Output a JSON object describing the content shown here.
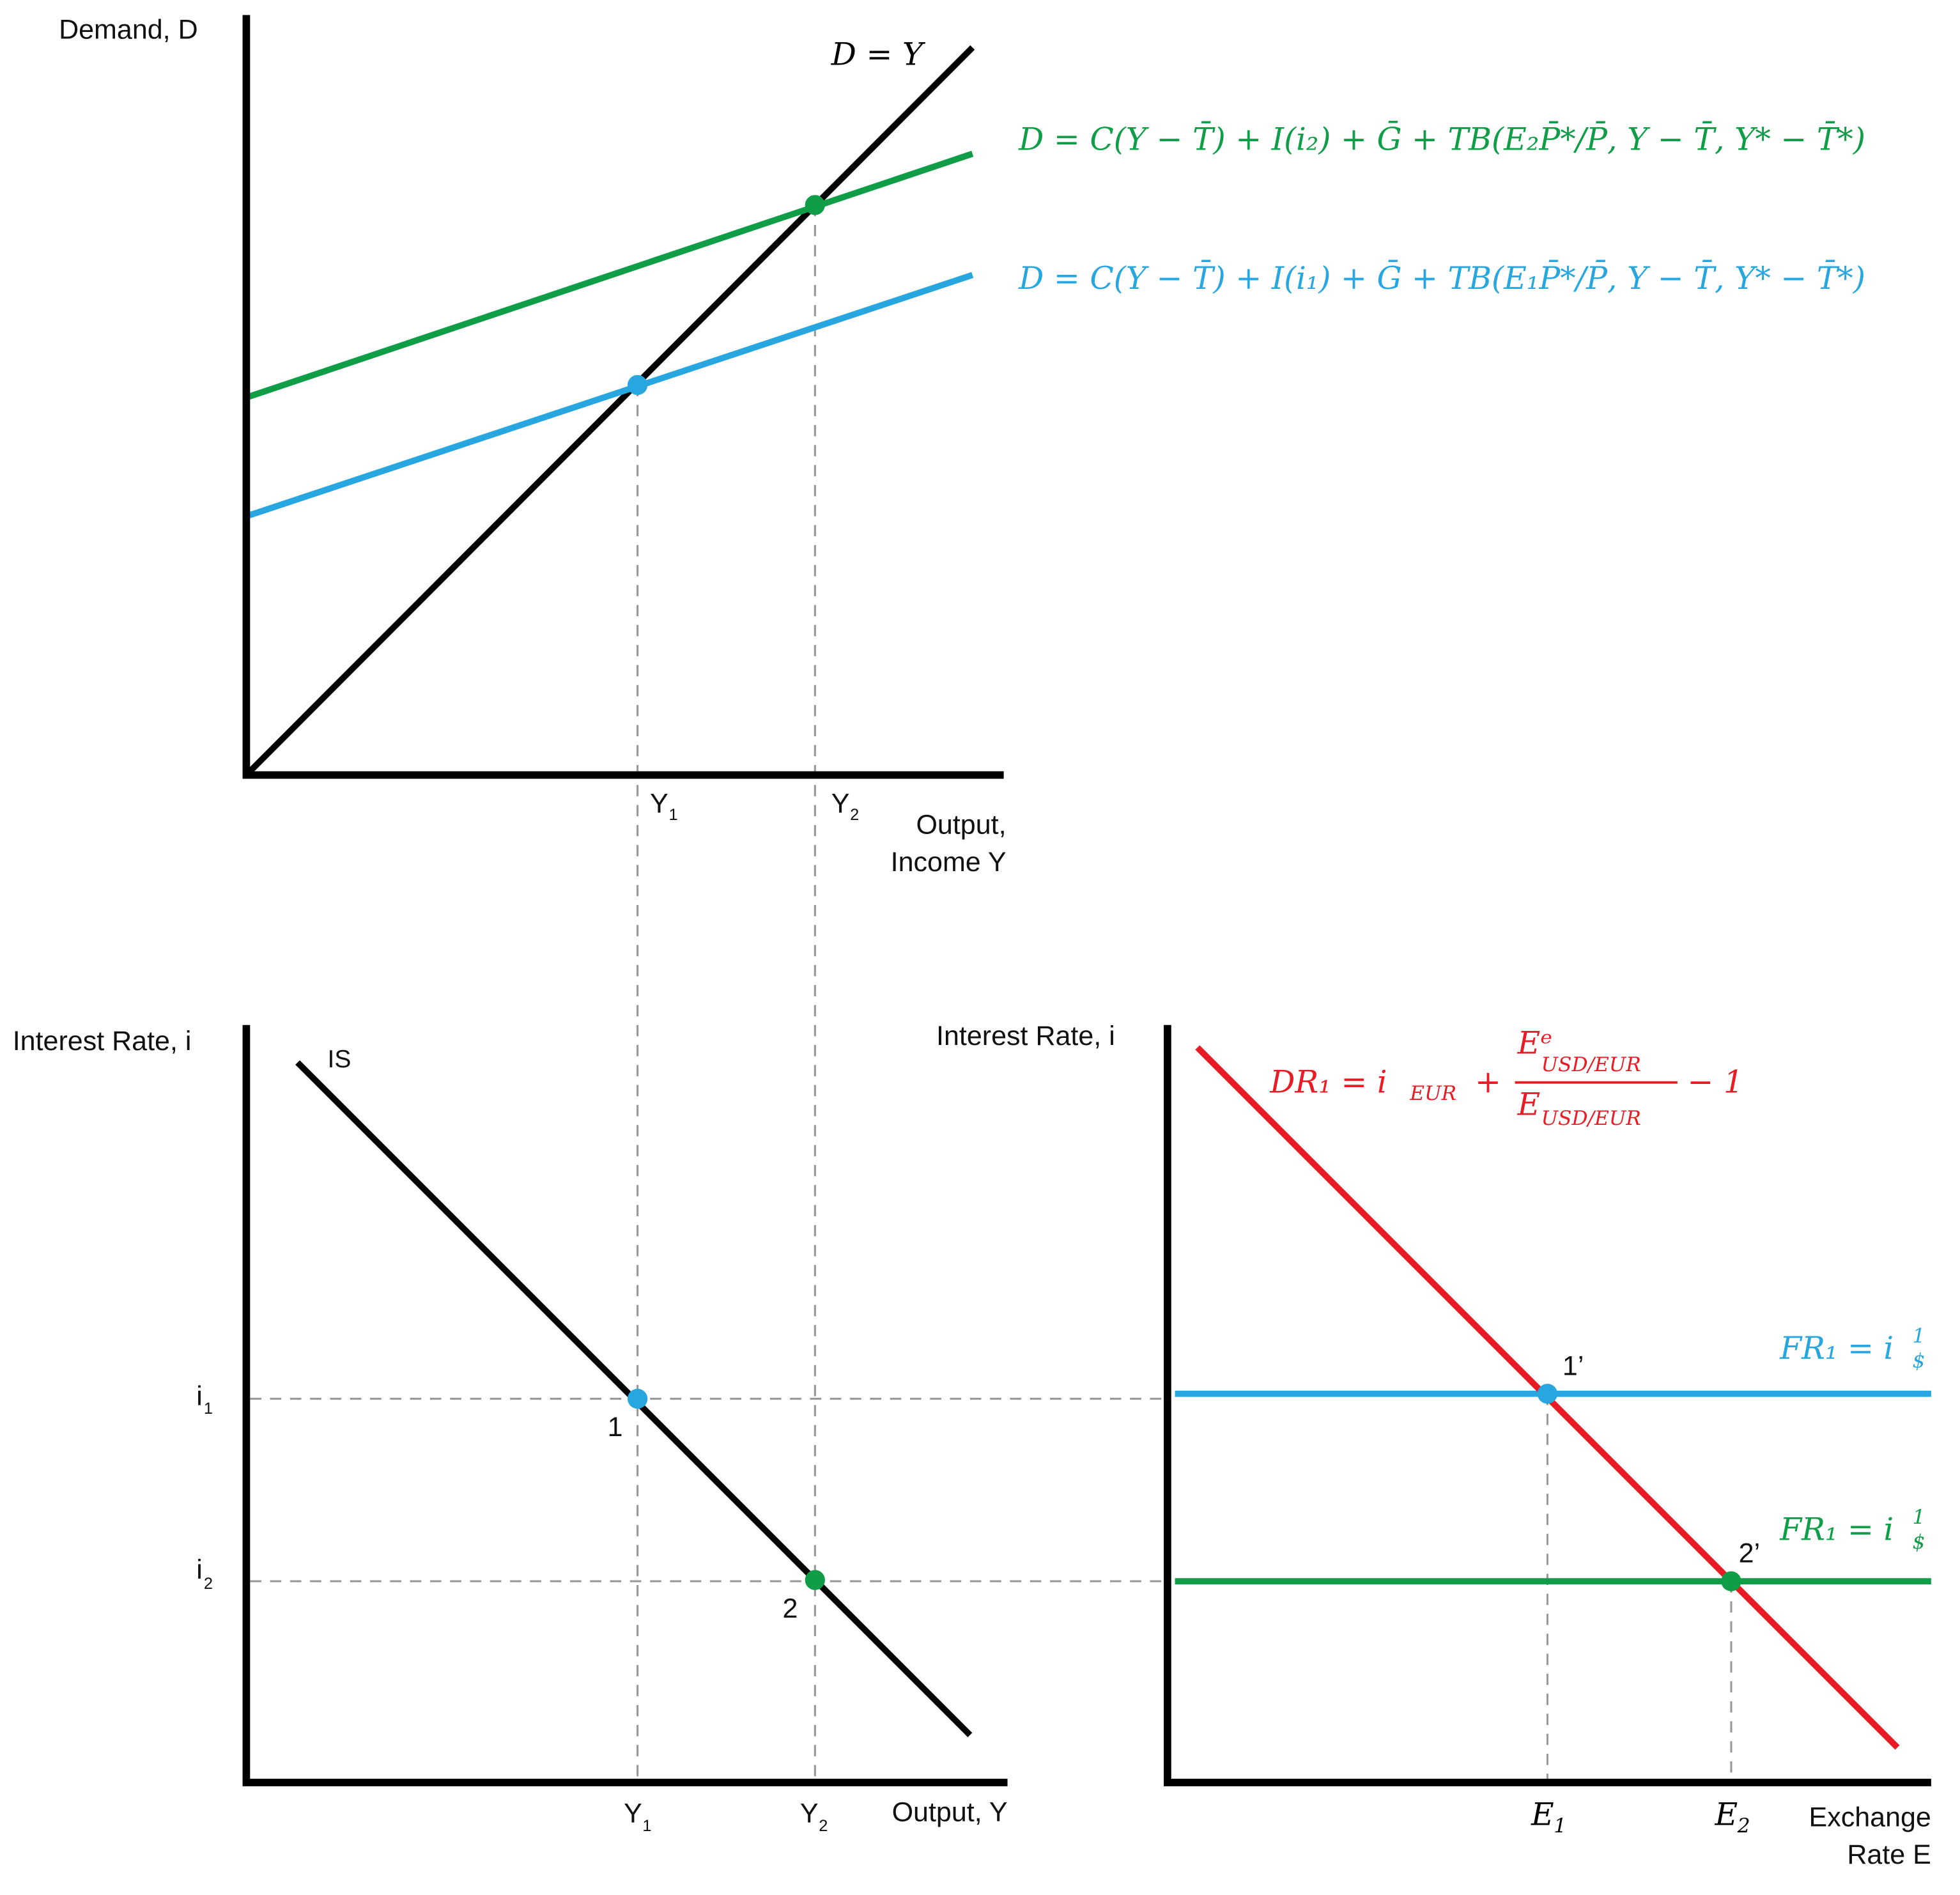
{
  "colors": {
    "green": "#0f9d47",
    "blue": "#27a6e0",
    "red": "#e81c24",
    "black": "#000000"
  },
  "top": {
    "y_label": "Demand, D",
    "x_label_line1": "Output,",
    "x_label_line2": "Income Y",
    "line_45": "D = Y",
    "green_eq": "D = C(Y − T̄) + I(i₂) + Ḡ + TB(E₂P̄*/P̄, Y − T̄, Y* − T̄*)",
    "blue_eq": "D = C(Y − T̄) + I(i₁) + Ḡ + TB(E₁P̄*/P̄, Y − T̄, Y* − T̄*)",
    "y1": "Y",
    "y1_sub": "1",
    "y2": "Y",
    "y2_sub": "2"
  },
  "bottom_left": {
    "y_label": "Interest Rate, i",
    "x_label": "Output, Y",
    "curve": "IS",
    "i1": "i",
    "i1_sub": "1",
    "i2": "i",
    "i2_sub": "2",
    "pt1": "1",
    "pt2": "2",
    "y1": "Y",
    "y1_sub": "1",
    "y2": "Y",
    "y2_sub": "2"
  },
  "bottom_right": {
    "y_label": "Interest Rate, i",
    "x_label_line1": "Exchange",
    "x_label_line2": "Rate E",
    "dr_lhs": "DR₁ = i",
    "dr_lhs_sub": "EUR",
    "dr_plus": "+",
    "dr_num": "Eᵉ",
    "dr_num_sub": "USD/EUR",
    "dr_den": "E",
    "dr_den_sub": "USD/EUR",
    "dr_tail": "− 1",
    "fr_blue": "FR₁ = i",
    "fr_blue_sup": "1",
    "fr_blue_sub": "$",
    "fr_green": "FR₁ = i",
    "fr_green_sup": "1",
    "fr_green_sub": "$",
    "pt1": "1’",
    "pt2": "2’",
    "e1": "E",
    "e1_sub": "1",
    "e2": "E",
    "e2_sub": "2"
  }
}
